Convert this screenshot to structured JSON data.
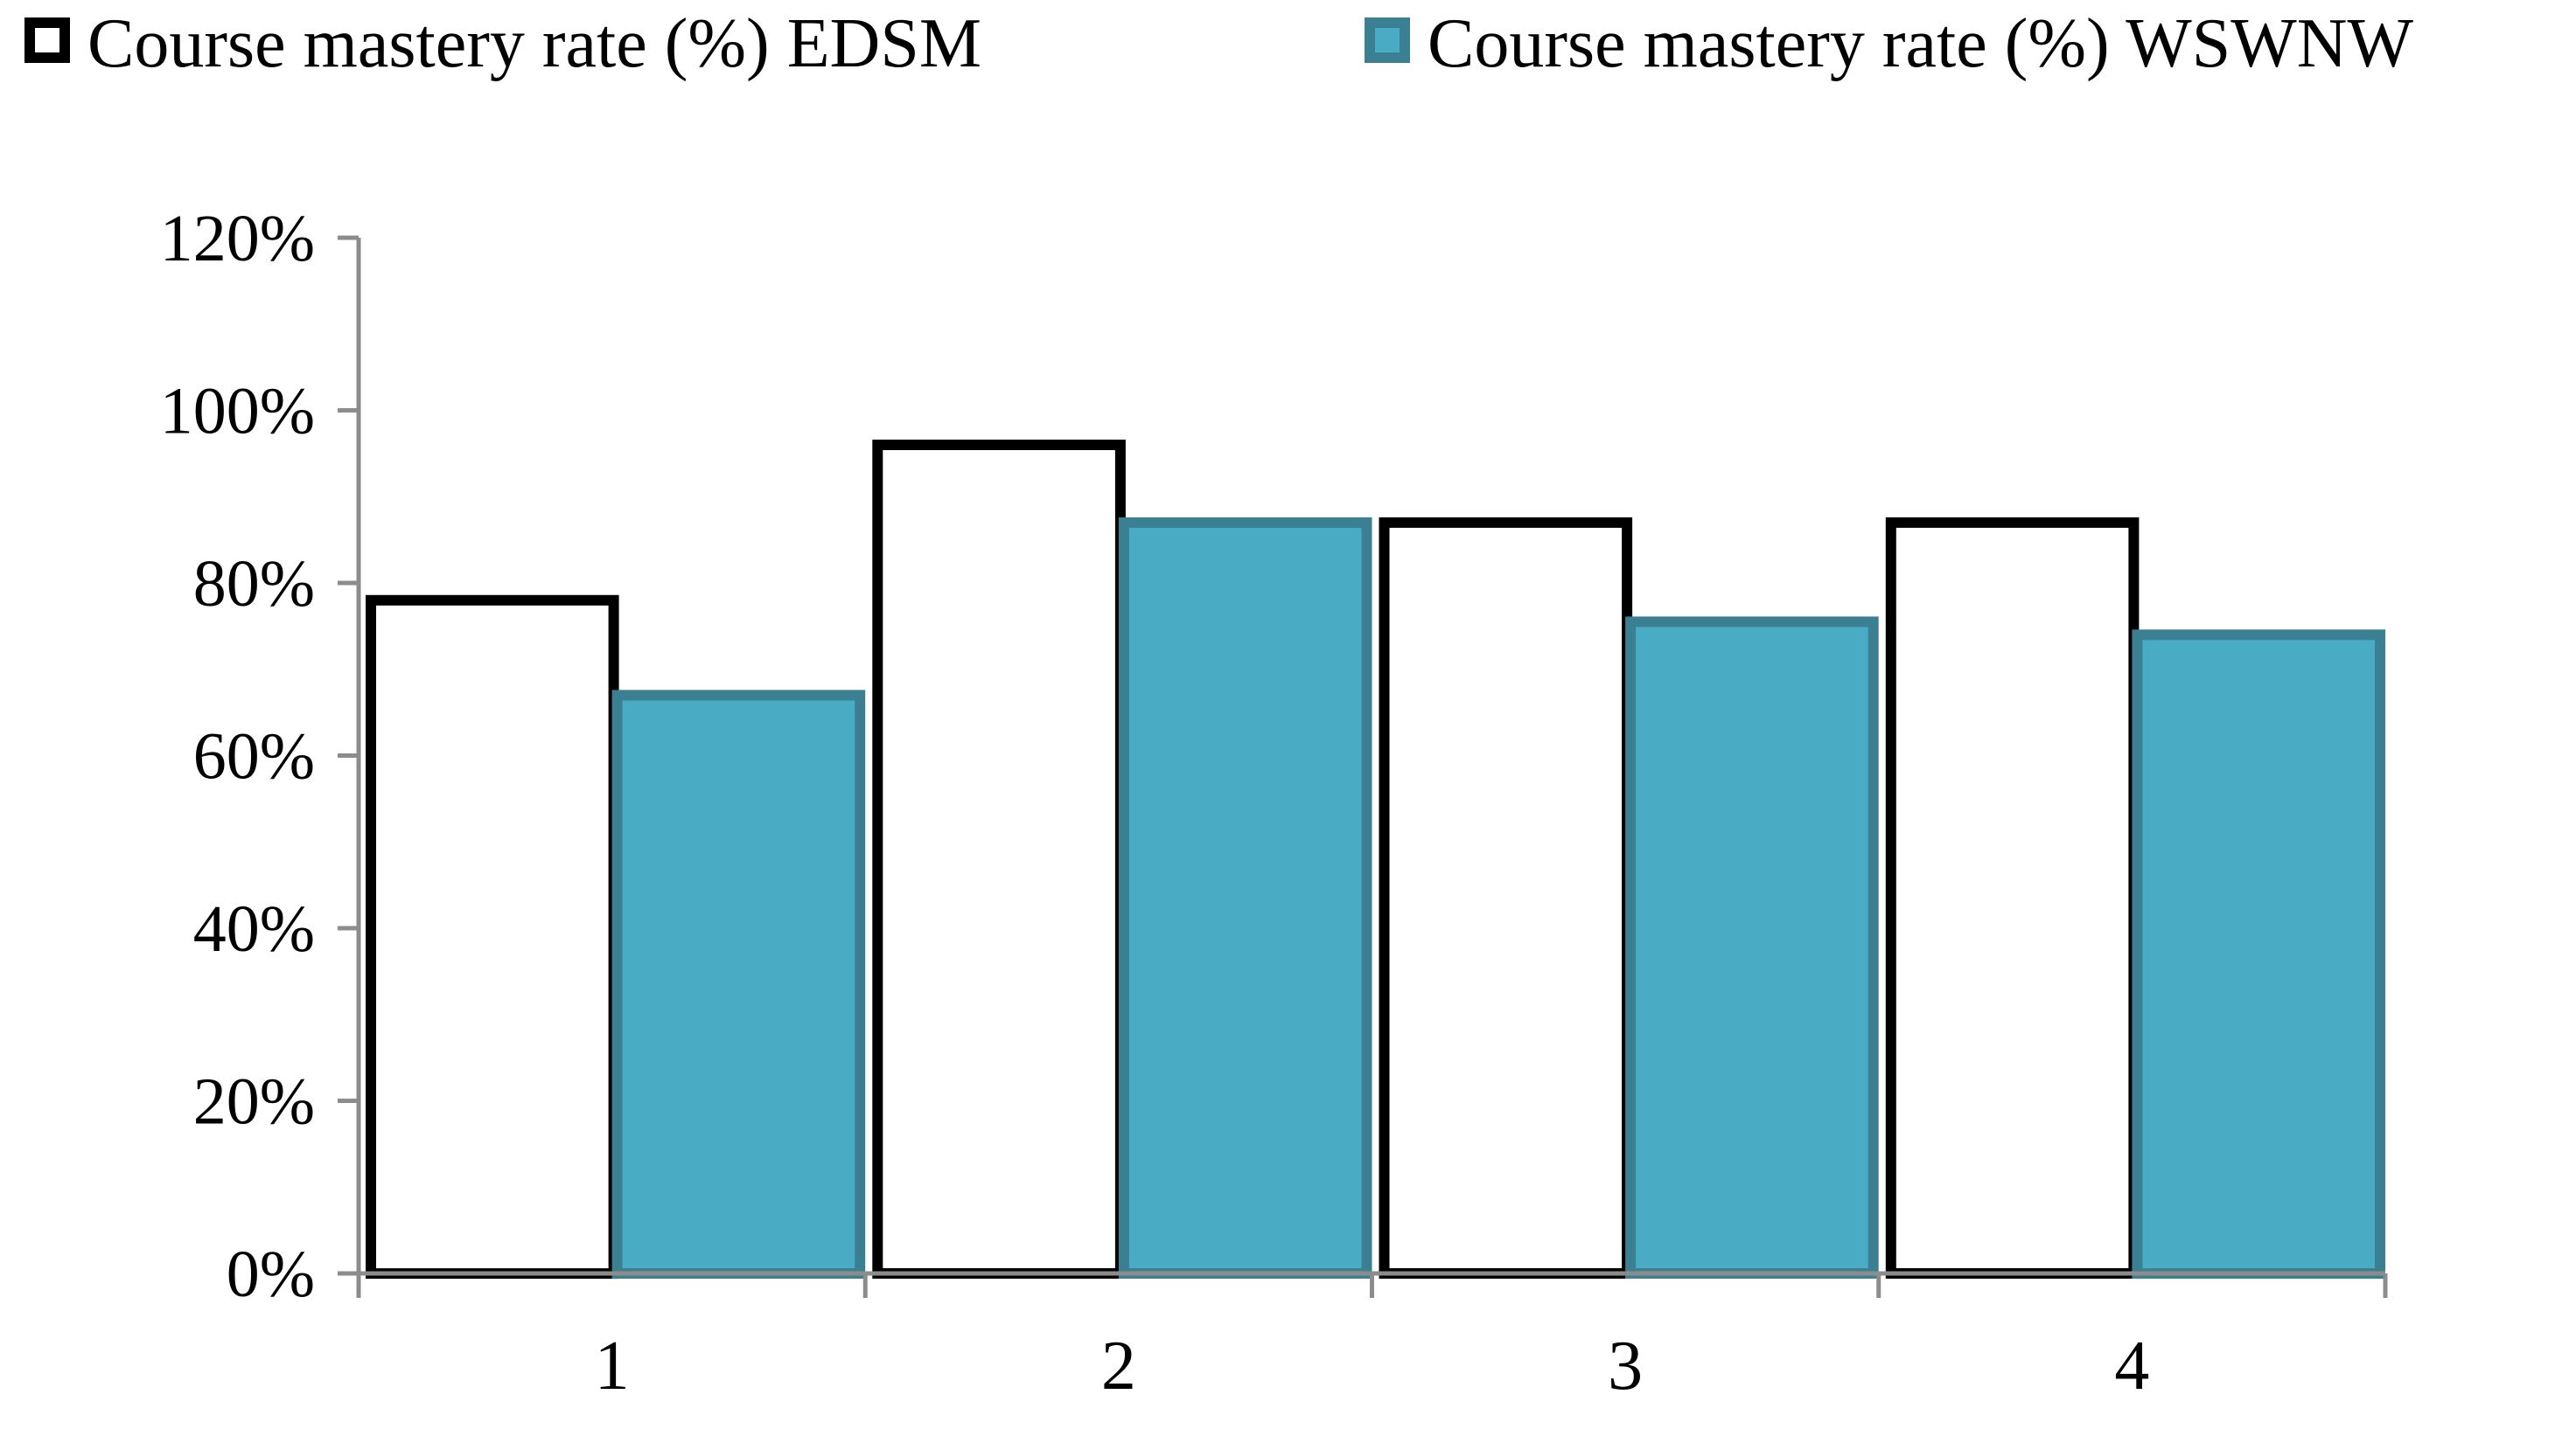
{
  "chart_data": {
    "type": "bar",
    "title": "",
    "xlabel": "",
    "ylabel": "",
    "categories": [
      "1",
      "2",
      "3",
      "4"
    ],
    "ylim": [
      0,
      1.2
    ],
    "yticks": [
      {
        "value": 0,
        "label": "0%"
      },
      {
        "value": 0.2,
        "label": "20%"
      },
      {
        "value": 0.4,
        "label": "40%"
      },
      {
        "value": 0.6,
        "label": "60%"
      },
      {
        "value": 0.8,
        "label": "80%"
      },
      {
        "value": 1.0,
        "label": "100%"
      },
      {
        "value": 1.2,
        "label": "120%"
      }
    ],
    "series": [
      {
        "name": "Course mastery rate (%) EDSM",
        "values": [
          0.78,
          0.96,
          0.87,
          0.87
        ],
        "fill": "#ffffff",
        "stroke": "#000000"
      },
      {
        "name": "Course mastery rate (%) WSWNW",
        "values": [
          0.67,
          0.87,
          0.755,
          0.74
        ],
        "fill": "#4aabc5",
        "stroke": "#3a7f92"
      }
    ],
    "grid": false,
    "legend_position": "top"
  }
}
